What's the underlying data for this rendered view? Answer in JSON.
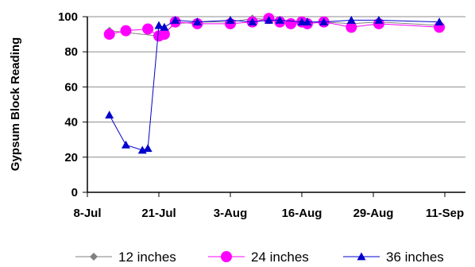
{
  "chart_data": {
    "type": "line",
    "title": "",
    "xlabel": "",
    "ylabel": "Gypsum Block Reading",
    "ylim": [
      0,
      100
    ],
    "yticks": [
      0,
      20,
      40,
      60,
      80,
      100
    ],
    "xticks": [
      "8-Jul",
      "21-Jul",
      "3-Aug",
      "16-Aug",
      "29-Aug",
      "11-Sep"
    ],
    "xlim": [
      "8-Jul",
      "11-Sep"
    ],
    "grid": "horizontal",
    "legend_position": "bottom",
    "series": [
      {
        "name": "12 inches",
        "color": "#808080",
        "marker": "diamond",
        "points": [
          {
            "x": "12-Jul",
            "y": 92
          },
          {
            "x": "21-Jul",
            "y": 89
          },
          {
            "x": "22-Jul",
            "y": 91
          },
          {
            "x": "24-Jul",
            "y": 96
          },
          {
            "x": "28-Jul",
            "y": 97
          },
          {
            "x": "3-Aug",
            "y": 97
          },
          {
            "x": "7-Aug",
            "y": 99
          },
          {
            "x": "12-Aug",
            "y": 98
          },
          {
            "x": "16-Aug",
            "y": 96
          },
          {
            "x": "17-Aug",
            "y": 97
          },
          {
            "x": "20-Aug",
            "y": 97
          },
          {
            "x": "25-Aug",
            "y": 96
          },
          {
            "x": "30-Aug",
            "y": 97
          },
          {
            "x": "10-Sep",
            "y": 95
          }
        ]
      },
      {
        "name": "24 inches",
        "color": "#ff00ff",
        "marker": "circle",
        "points": [
          {
            "x": "12-Jul",
            "y": 90
          },
          {
            "x": "15-Jul",
            "y": 92
          },
          {
            "x": "19-Jul",
            "y": 93
          },
          {
            "x": "21-Jul",
            "y": 89
          },
          {
            "x": "22-Jul",
            "y": 90
          },
          {
            "x": "24-Jul",
            "y": 97
          },
          {
            "x": "28-Jul",
            "y": 96
          },
          {
            "x": "3-Aug",
            "y": 96
          },
          {
            "x": "7-Aug",
            "y": 97
          },
          {
            "x": "10-Aug",
            "y": 99
          },
          {
            "x": "12-Aug",
            "y": 97
          },
          {
            "x": "14-Aug",
            "y": 96
          },
          {
            "x": "16-Aug",
            "y": 97
          },
          {
            "x": "17-Aug",
            "y": 96
          },
          {
            "x": "20-Aug",
            "y": 97
          },
          {
            "x": "25-Aug",
            "y": 94
          },
          {
            "x": "30-Aug",
            "y": 96
          },
          {
            "x": "10-Sep",
            "y": 94
          }
        ]
      },
      {
        "name": "36 inches",
        "color": "#0000cc",
        "marker": "triangle",
        "points": [
          {
            "x": "12-Jul",
            "y": 44
          },
          {
            "x": "15-Jul",
            "y": 27
          },
          {
            "x": "18-Jul",
            "y": 24
          },
          {
            "x": "19-Jul",
            "y": 25
          },
          {
            "x": "21-Jul",
            "y": 95
          },
          {
            "x": "22-Jul",
            "y": 94
          },
          {
            "x": "24-Jul",
            "y": 98
          },
          {
            "x": "28-Jul",
            "y": 97
          },
          {
            "x": "3-Aug",
            "y": 98
          },
          {
            "x": "7-Aug",
            "y": 97
          },
          {
            "x": "10-Aug",
            "y": 98
          },
          {
            "x": "12-Aug",
            "y": 98
          },
          {
            "x": "16-Aug",
            "y": 97
          },
          {
            "x": "17-Aug",
            "y": 97
          },
          {
            "x": "20-Aug",
            "y": 97
          },
          {
            "x": "25-Aug",
            "y": 98
          },
          {
            "x": "30-Aug",
            "y": 98
          },
          {
            "x": "10-Sep",
            "y": 97
          }
        ]
      }
    ]
  }
}
